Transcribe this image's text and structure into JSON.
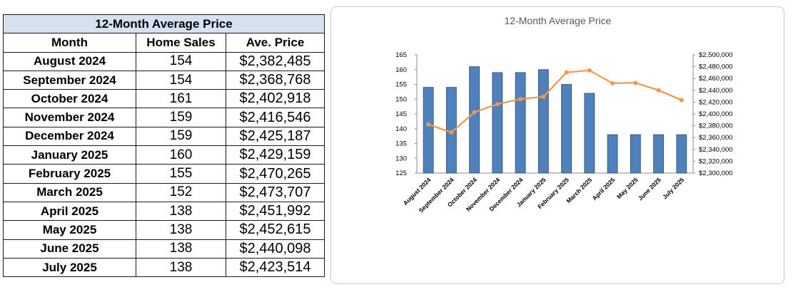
{
  "table": {
    "title": "12-Month Average Price",
    "headers": [
      "Month",
      "Home Sales",
      "Ave. Price"
    ],
    "rows": [
      [
        "August 2024",
        "154",
        "$2,382,485"
      ],
      [
        "September 2024",
        "154",
        "$2,368,768"
      ],
      [
        "October 2024",
        "161",
        "$2,402,918"
      ],
      [
        "November 2024",
        "159",
        "$2,416,546"
      ],
      [
        "December 2024",
        "159",
        "$2,425,187"
      ],
      [
        "January 2025",
        "160",
        "$2,429,159"
      ],
      [
        "February 2025",
        "155",
        "$2,470,265"
      ],
      [
        "March 2025",
        "152",
        "$2,473,707"
      ],
      [
        "April 2025",
        "138",
        "$2,451,992"
      ],
      [
        "May 2025",
        "138",
        "$2,452,615"
      ],
      [
        "June 2025",
        "138",
        "$2,440,098"
      ],
      [
        "July 2025",
        "138",
        "$2,423,514"
      ]
    ],
    "header_bg": "#d6e1f0"
  },
  "chart_data": {
    "type": "bar",
    "title": "12-Month Average Price",
    "categories": [
      "August 2024",
      "September 2024",
      "October 2024",
      "November 2024",
      "December 2024",
      "January 2025",
      "February 2025",
      "March 2025",
      "April 2025",
      "May 2025",
      "June 2025",
      "July 2025"
    ],
    "series": [
      {
        "type": "bar",
        "axis": "left",
        "color": "#4f81bd",
        "values": [
          154,
          154,
          161,
          159,
          159,
          160,
          155,
          152,
          138,
          138,
          138,
          138
        ]
      },
      {
        "type": "line",
        "axis": "right",
        "color": "#f79646",
        "values": [
          2382485,
          2368768,
          2402918,
          2416546,
          2425187,
          2429159,
          2470265,
          2473707,
          2451992,
          2452615,
          2440098,
          2423514
        ]
      }
    ],
    "y_left": {
      "min": 125,
      "max": 165,
      "step": 5,
      "ticks": [
        "125",
        "130",
        "135",
        "140",
        "145",
        "150",
        "155",
        "160",
        "165"
      ]
    },
    "y_right": {
      "min": 2300000,
      "max": 2500000,
      "step": 20000,
      "ticks": [
        "$2,300,000",
        "$2,320,000",
        "$2,340,000",
        "$2,360,000",
        "$2,380,000",
        "$2,400,000",
        "$2,420,000",
        "$2,440,000",
        "$2,460,000",
        "$2,480,000",
        "$2,500,000"
      ]
    },
    "grid": false,
    "legend": false
  }
}
